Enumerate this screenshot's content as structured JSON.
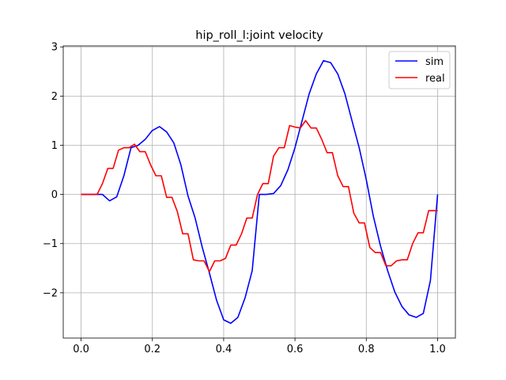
{
  "chart_data": {
    "type": "line",
    "title": "hip_roll_l:joint velocity",
    "xlabel": "",
    "ylabel": "",
    "xlim": [
      -0.05,
      1.05
    ],
    "ylim": [
      -2.92,
      3.02
    ],
    "xticks": [
      0.0,
      0.2,
      0.4,
      0.6,
      0.8,
      1.0
    ],
    "xtick_labels": [
      "0.0",
      "0.2",
      "0.4",
      "0.6",
      "0.8",
      "1.0"
    ],
    "yticks": [
      -2,
      -1,
      0,
      1,
      2,
      3
    ],
    "ytick_labels": [
      "−2",
      "−1",
      "0",
      "1",
      "2",
      "3"
    ],
    "grid": true,
    "legend_position": "top-right",
    "series": [
      {
        "name": "sim",
        "color": "#0000ff",
        "x": [
          0.0,
          0.02,
          0.04,
          0.06,
          0.08,
          0.1,
          0.12,
          0.14,
          0.16,
          0.18,
          0.2,
          0.22,
          0.24,
          0.26,
          0.28,
          0.3,
          0.32,
          0.34,
          0.36,
          0.38,
          0.4,
          0.42,
          0.44,
          0.46,
          0.48,
          0.5,
          0.52,
          0.54,
          0.56,
          0.58,
          0.6,
          0.62,
          0.64,
          0.66,
          0.68,
          0.7,
          0.72,
          0.74,
          0.76,
          0.78,
          0.8,
          0.82,
          0.84,
          0.86,
          0.88,
          0.9,
          0.92,
          0.94,
          0.96,
          0.98,
          1.0
        ],
        "y": [
          0.0,
          0.0,
          0.0,
          0.0,
          -0.13,
          -0.05,
          0.38,
          0.95,
          1.0,
          1.12,
          1.3,
          1.38,
          1.27,
          1.05,
          0.6,
          -0.03,
          -0.48,
          -1.08,
          -1.6,
          -2.15,
          -2.55,
          -2.62,
          -2.5,
          -2.1,
          -1.55,
          0.0,
          0.0,
          0.02,
          0.18,
          0.5,
          0.95,
          1.5,
          2.05,
          2.45,
          2.72,
          2.68,
          2.45,
          2.05,
          1.5,
          0.95,
          0.3,
          -0.45,
          -1.05,
          -1.55,
          -1.98,
          -2.28,
          -2.45,
          -2.5,
          -2.42,
          -1.75,
          0.0
        ]
      },
      {
        "name": "real",
        "color": "#ff0000",
        "x": [
          0.0,
          0.015,
          0.03,
          0.045,
          0.06,
          0.075,
          0.09,
          0.105,
          0.12,
          0.135,
          0.15,
          0.165,
          0.18,
          0.195,
          0.21,
          0.225,
          0.24,
          0.255,
          0.27,
          0.285,
          0.3,
          0.315,
          0.33,
          0.345,
          0.36,
          0.375,
          0.39,
          0.405,
          0.42,
          0.435,
          0.45,
          0.465,
          0.48,
          0.495,
          0.51,
          0.525,
          0.54,
          0.555,
          0.57,
          0.585,
          0.6,
          0.615,
          0.63,
          0.645,
          0.66,
          0.675,
          0.69,
          0.705,
          0.72,
          0.735,
          0.75,
          0.765,
          0.78,
          0.795,
          0.81,
          0.825,
          0.84,
          0.855,
          0.87,
          0.885,
          0.9,
          0.915,
          0.93,
          0.945,
          0.96,
          0.975,
          0.99,
          1.0
        ],
        "y": [
          0.0,
          0.0,
          0.0,
          0.0,
          0.22,
          0.53,
          0.53,
          0.9,
          0.95,
          0.95,
          1.02,
          0.87,
          0.87,
          0.6,
          0.38,
          0.38,
          -0.06,
          -0.06,
          -0.35,
          -0.8,
          -0.8,
          -1.33,
          -1.35,
          -1.35,
          -1.57,
          -1.35,
          -1.35,
          -1.3,
          -1.03,
          -1.03,
          -0.8,
          -0.48,
          -0.48,
          0.0,
          0.22,
          0.22,
          0.78,
          0.95,
          0.95,
          1.4,
          1.37,
          1.35,
          1.5,
          1.35,
          1.35,
          1.12,
          0.85,
          0.85,
          0.38,
          0.16,
          0.16,
          -0.38,
          -0.58,
          -0.58,
          -1.08,
          -1.18,
          -1.18,
          -1.45,
          -1.45,
          -1.35,
          -1.33,
          -1.33,
          -1.0,
          -0.78,
          -0.78,
          -0.33,
          -0.33,
          -0.33
        ]
      }
    ]
  }
}
